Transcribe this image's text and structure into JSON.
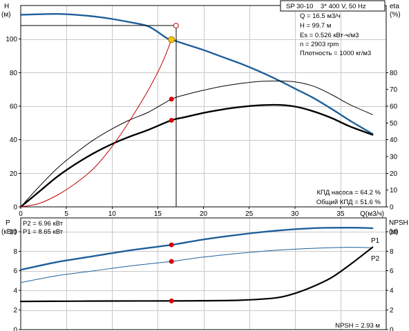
{
  "colors": {
    "background": "#ffffff",
    "grid": "#c8c8c8",
    "axis": "#000000",
    "head_curve": "#1f5f9a",
    "power_curves": "#1f5f9a",
    "efficiency_curves": "#000000",
    "system_curve": "#c00000",
    "marker": "#d40000",
    "operating_point": "#ffc000"
  },
  "title_box": "SP 30-10    3* 400 V, 50 Hz",
  "info_lines": [
    "Q = 16.5 м3/ч",
    "H = 99.7 м",
    "Es = 0.526 кВт-ч/м3",
    "n = 2903 rpm",
    "Плотность = 1000 кг/м3"
  ],
  "efficiency_labels": [
    "КПД насоса = 64.2 %",
    "Общий КПД = 51.6 %"
  ],
  "power_labels": [
    "P2 = 6.96 кВт",
    "P1 = 8.65 кВт"
  ],
  "npsh_label": "NPSH = 2.93 м",
  "chart_data": [
    {
      "type": "line",
      "name": "head-efficiency",
      "xlabel": "Q(м3/ч)",
      "x_ticks": [
        0,
        5,
        10,
        15,
        20,
        25,
        30,
        35
      ],
      "xlim": [
        0,
        40
      ],
      "y_left": {
        "label_top": "H",
        "label_unit": "(м)",
        "ticks": [
          0,
          20,
          40,
          60,
          80,
          100
        ],
        "ylim": [
          0,
          120
        ]
      },
      "y_right": {
        "label_top": "eta",
        "label_unit": "(%)",
        "ticks": [
          0,
          10,
          20,
          30,
          40,
          50,
          60,
          70,
          80
        ],
        "ylim": [
          0,
          120
        ]
      },
      "series": [
        {
          "id": "H",
          "axis": "left",
          "x": [
            0,
            2,
            4,
            6,
            8,
            10,
            12,
            14,
            16,
            16.5,
            18,
            20,
            22,
            24,
            26,
            28,
            30,
            32,
            34,
            36,
            38.5
          ],
          "y": [
            114.5,
            114.8,
            115,
            114.5,
            113.5,
            112,
            110,
            107.5,
            100.5,
            99.7,
            97,
            93.5,
            89.5,
            85.5,
            81,
            76,
            70.5,
            65,
            58.5,
            51.5,
            43.5
          ]
        },
        {
          "id": "eta-pump",
          "axis": "right",
          "x": [
            0,
            2,
            4,
            6,
            8,
            10,
            12,
            14,
            16.5,
            18,
            20,
            22,
            24,
            26,
            28,
            30,
            32,
            34,
            36,
            38.5
          ],
          "y": [
            0,
            12,
            23,
            32,
            40,
            46.5,
            52,
            56.5,
            64.2,
            66.8,
            69.5,
            71.8,
            73.5,
            74.7,
            75,
            74.5,
            72,
            67,
            61,
            55
          ]
        },
        {
          "id": "eta-total",
          "axis": "right",
          "x": [
            0,
            2,
            4,
            6,
            8,
            10,
            12,
            14,
            16.5,
            18,
            20,
            22,
            24,
            26,
            28,
            30,
            32,
            34,
            36,
            38.5
          ],
          "y": [
            0,
            9,
            18,
            25.5,
            32,
            37.5,
            42,
            46,
            51.6,
            53.5,
            56,
            58,
            59.5,
            60.5,
            60.8,
            59.8,
            57,
            53,
            48,
            43
          ]
        },
        {
          "id": "system",
          "axis": "left",
          "x": [
            0,
            2,
            4,
            6,
            8,
            10,
            12,
            14,
            15.5,
            16.5
          ],
          "y": [
            0,
            2,
            7,
            14,
            23,
            36,
            52,
            70,
            86,
            99.7
          ]
        }
      ],
      "duty_point": {
        "x": 16.5,
        "y": 99.7
      },
      "setpoint": {
        "x": 17,
        "y": 108
      },
      "markers": [
        {
          "x": 16.5,
          "y": 64.2
        },
        {
          "x": 16.5,
          "y": 51.6
        }
      ]
    },
    {
      "type": "line",
      "name": "power-npsh",
      "y_left": {
        "label_top": "P",
        "label_unit": "(кВт)",
        "ticks": [
          0,
          2,
          4,
          6,
          8,
          10
        ],
        "ylim": [
          0,
          11.4
        ]
      },
      "y_right": {
        "label_top": "NPSH",
        "label_unit": "(м)",
        "ticks": [
          0,
          2,
          4,
          6,
          8,
          10
        ],
        "ylim": [
          0,
          11.4
        ]
      },
      "series": [
        {
          "id": "P1",
          "name": "P1",
          "axis": "left",
          "x": [
            0,
            4,
            8,
            12,
            16.5,
            20,
            24,
            28,
            32,
            36,
            38.5
          ],
          "y": [
            6.1,
            6.9,
            7.5,
            8.1,
            8.65,
            9.2,
            9.7,
            10.1,
            10.35,
            10.4,
            10.35
          ]
        },
        {
          "id": "P2",
          "name": "P2",
          "axis": "left",
          "x": [
            0,
            4,
            8,
            12,
            16.5,
            20,
            24,
            28,
            32,
            36,
            38.5
          ],
          "y": [
            4.8,
            5.5,
            6.0,
            6.5,
            6.96,
            7.4,
            7.8,
            8.1,
            8.3,
            8.4,
            8.35
          ]
        },
        {
          "id": "NPSH",
          "axis": "right",
          "x": [
            0,
            5,
            10,
            16.5,
            20,
            24,
            28,
            30,
            32,
            34,
            36,
            38.5
          ],
          "y": [
            2.88,
            2.9,
            2.92,
            2.93,
            2.95,
            3.0,
            3.25,
            3.7,
            4.4,
            5.3,
            6.6,
            8.4
          ]
        }
      ],
      "markers": [
        {
          "x": 16.5,
          "y": 8.65
        },
        {
          "x": 16.5,
          "y": 6.96
        },
        {
          "x": 16.5,
          "y": 2.93
        }
      ]
    }
  ]
}
